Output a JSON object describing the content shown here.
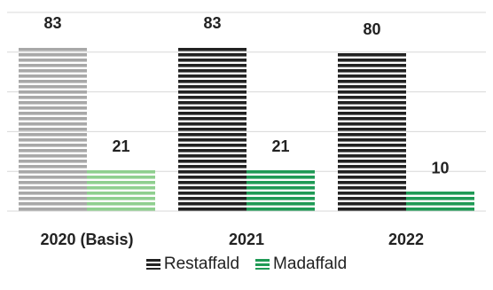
{
  "chart_data": {
    "type": "bar",
    "categories": [
      "2020 (Basis)",
      "2021",
      "2022"
    ],
    "series": [
      {
        "name": "Restaffald",
        "values": [
          83,
          83,
          80
        ]
      },
      {
        "name": "Madaffald",
        "values": [
          21,
          21,
          10
        ]
      }
    ],
    "data_labels": [
      [
        "83",
        "83",
        "80"
      ],
      [
        "21",
        "21",
        "10"
      ]
    ],
    "title": "",
    "xlabel": "",
    "ylabel": "",
    "ylim": [
      0,
      100
    ],
    "grid": true,
    "legend_position": "bottom",
    "colors": {
      "restaffald_basis": "#a8a8a8",
      "restaffald": "#222222",
      "madaffald_basis": "#8fcf8f",
      "madaffald": "#1f9a55",
      "grid": "#d8d8d8"
    },
    "legend": [
      {
        "label": "Restaffald",
        "color": "#222222"
      },
      {
        "label": "Madaffald",
        "color": "#1f9a55"
      }
    ]
  }
}
